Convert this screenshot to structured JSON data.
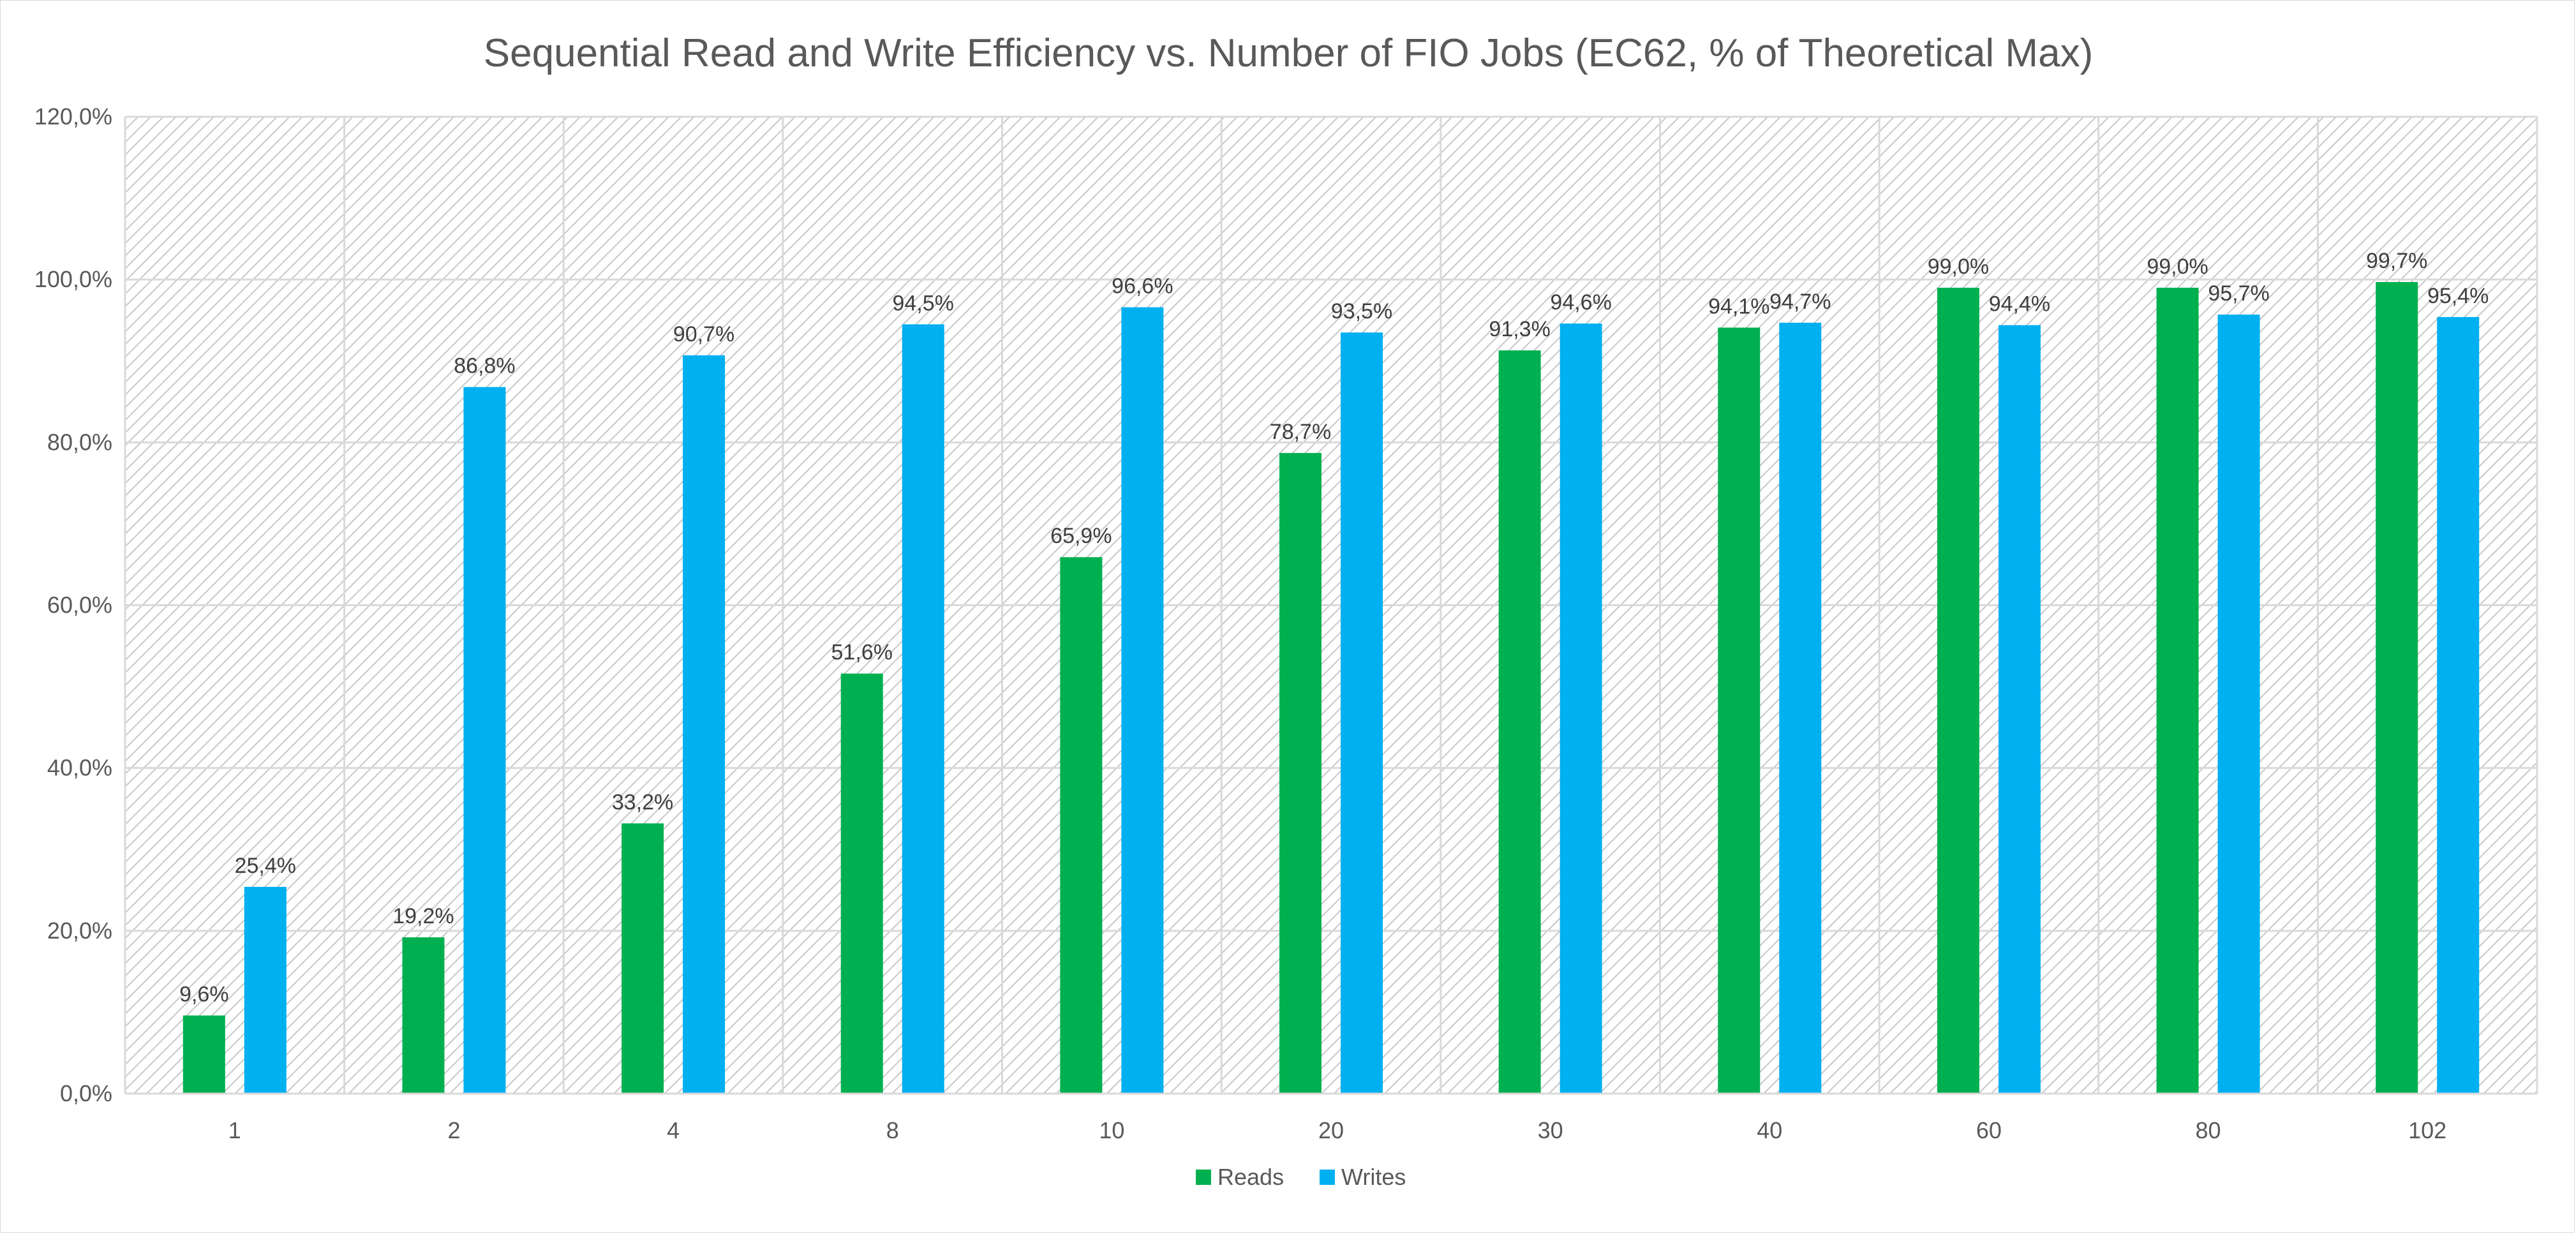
{
  "chart_data": {
    "type": "bar",
    "title": "Sequential Read and Write Efficiency vs. Number of FIO Jobs (EC62, % of Theoretical Max)",
    "xlabel": "",
    "ylabel": "",
    "categories": [
      "1",
      "2",
      "4",
      "8",
      "10",
      "20",
      "30",
      "40",
      "60",
      "80",
      "102"
    ],
    "series": [
      {
        "name": "Reads",
        "color": "#00b050",
        "values": [
          9.6,
          19.2,
          33.2,
          51.6,
          65.9,
          78.7,
          91.3,
          94.1,
          99.0,
          99.0,
          99.7
        ],
        "labels": [
          "9,6%",
          "19,2%",
          "33,2%",
          "51,6%",
          "65,9%",
          "78,7%",
          "91,3%",
          "94,1%",
          "99,0%",
          "99,0%",
          "99,7%"
        ]
      },
      {
        "name": "Writes",
        "color": "#00b0f0",
        "values": [
          25.4,
          86.8,
          90.7,
          94.5,
          96.6,
          93.5,
          94.6,
          94.7,
          94.4,
          95.7,
          95.4
        ],
        "labels": [
          "25,4%",
          "86,8%",
          "90,7%",
          "94,5%",
          "96,6%",
          "93,5%",
          "94,6%",
          "94,7%",
          "94,4%",
          "95,7%",
          "95,4%"
        ]
      }
    ],
    "ylim": [
      0,
      120
    ],
    "yticks": [
      0,
      20,
      40,
      60,
      80,
      100,
      120
    ],
    "ytick_labels": [
      "0,0%",
      "20,0%",
      "40,0%",
      "60,0%",
      "80,0%",
      "100,0%",
      "120,0%"
    ],
    "grid": true,
    "plot_background": "diagonal-hatch-gray",
    "legend": {
      "position": "bottom",
      "entries": [
        "Reads",
        "Writes"
      ]
    }
  }
}
